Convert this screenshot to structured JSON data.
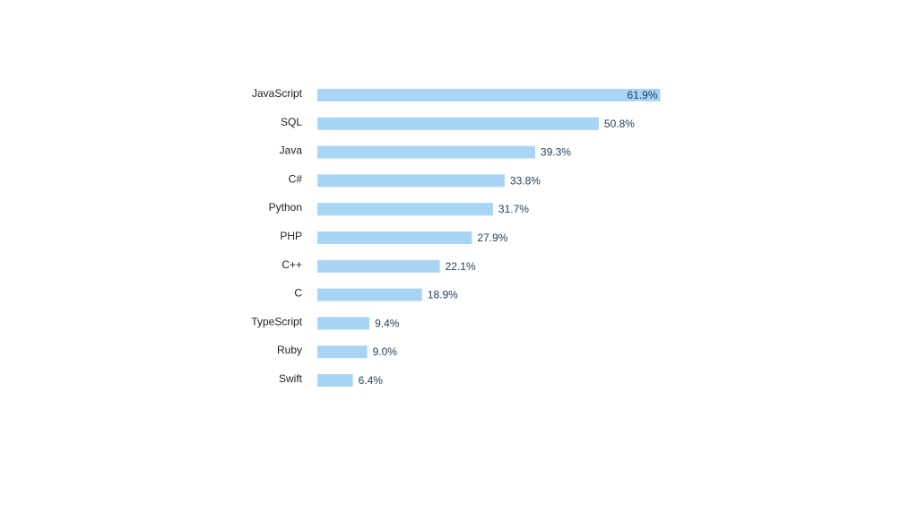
{
  "chart_data": {
    "type": "bar",
    "orientation": "horizontal",
    "categories": [
      "JavaScript",
      "SQL",
      "Java",
      "C#",
      "Python",
      "PHP",
      "C++",
      "C",
      "TypeScript",
      "Ruby",
      "Swift"
    ],
    "values": [
      61.9,
      50.8,
      39.3,
      33.8,
      31.7,
      27.9,
      22.1,
      18.9,
      9.4,
      9.0,
      6.4
    ],
    "value_labels": [
      "61.9%",
      "50.8%",
      "39.3%",
      "33.8%",
      "31.7%",
      "27.9%",
      "22.1%",
      "18.9%",
      "9.4%",
      "9.0%",
      "6.4%"
    ],
    "unit": "%",
    "title": "",
    "xlabel": "",
    "ylabel": "",
    "grid": false,
    "legend": "none",
    "colors": {
      "bar": "#a8d4f5",
      "category_text": "#222222",
      "value_text": "#1f3d5c",
      "background": "#ffffff"
    }
  }
}
